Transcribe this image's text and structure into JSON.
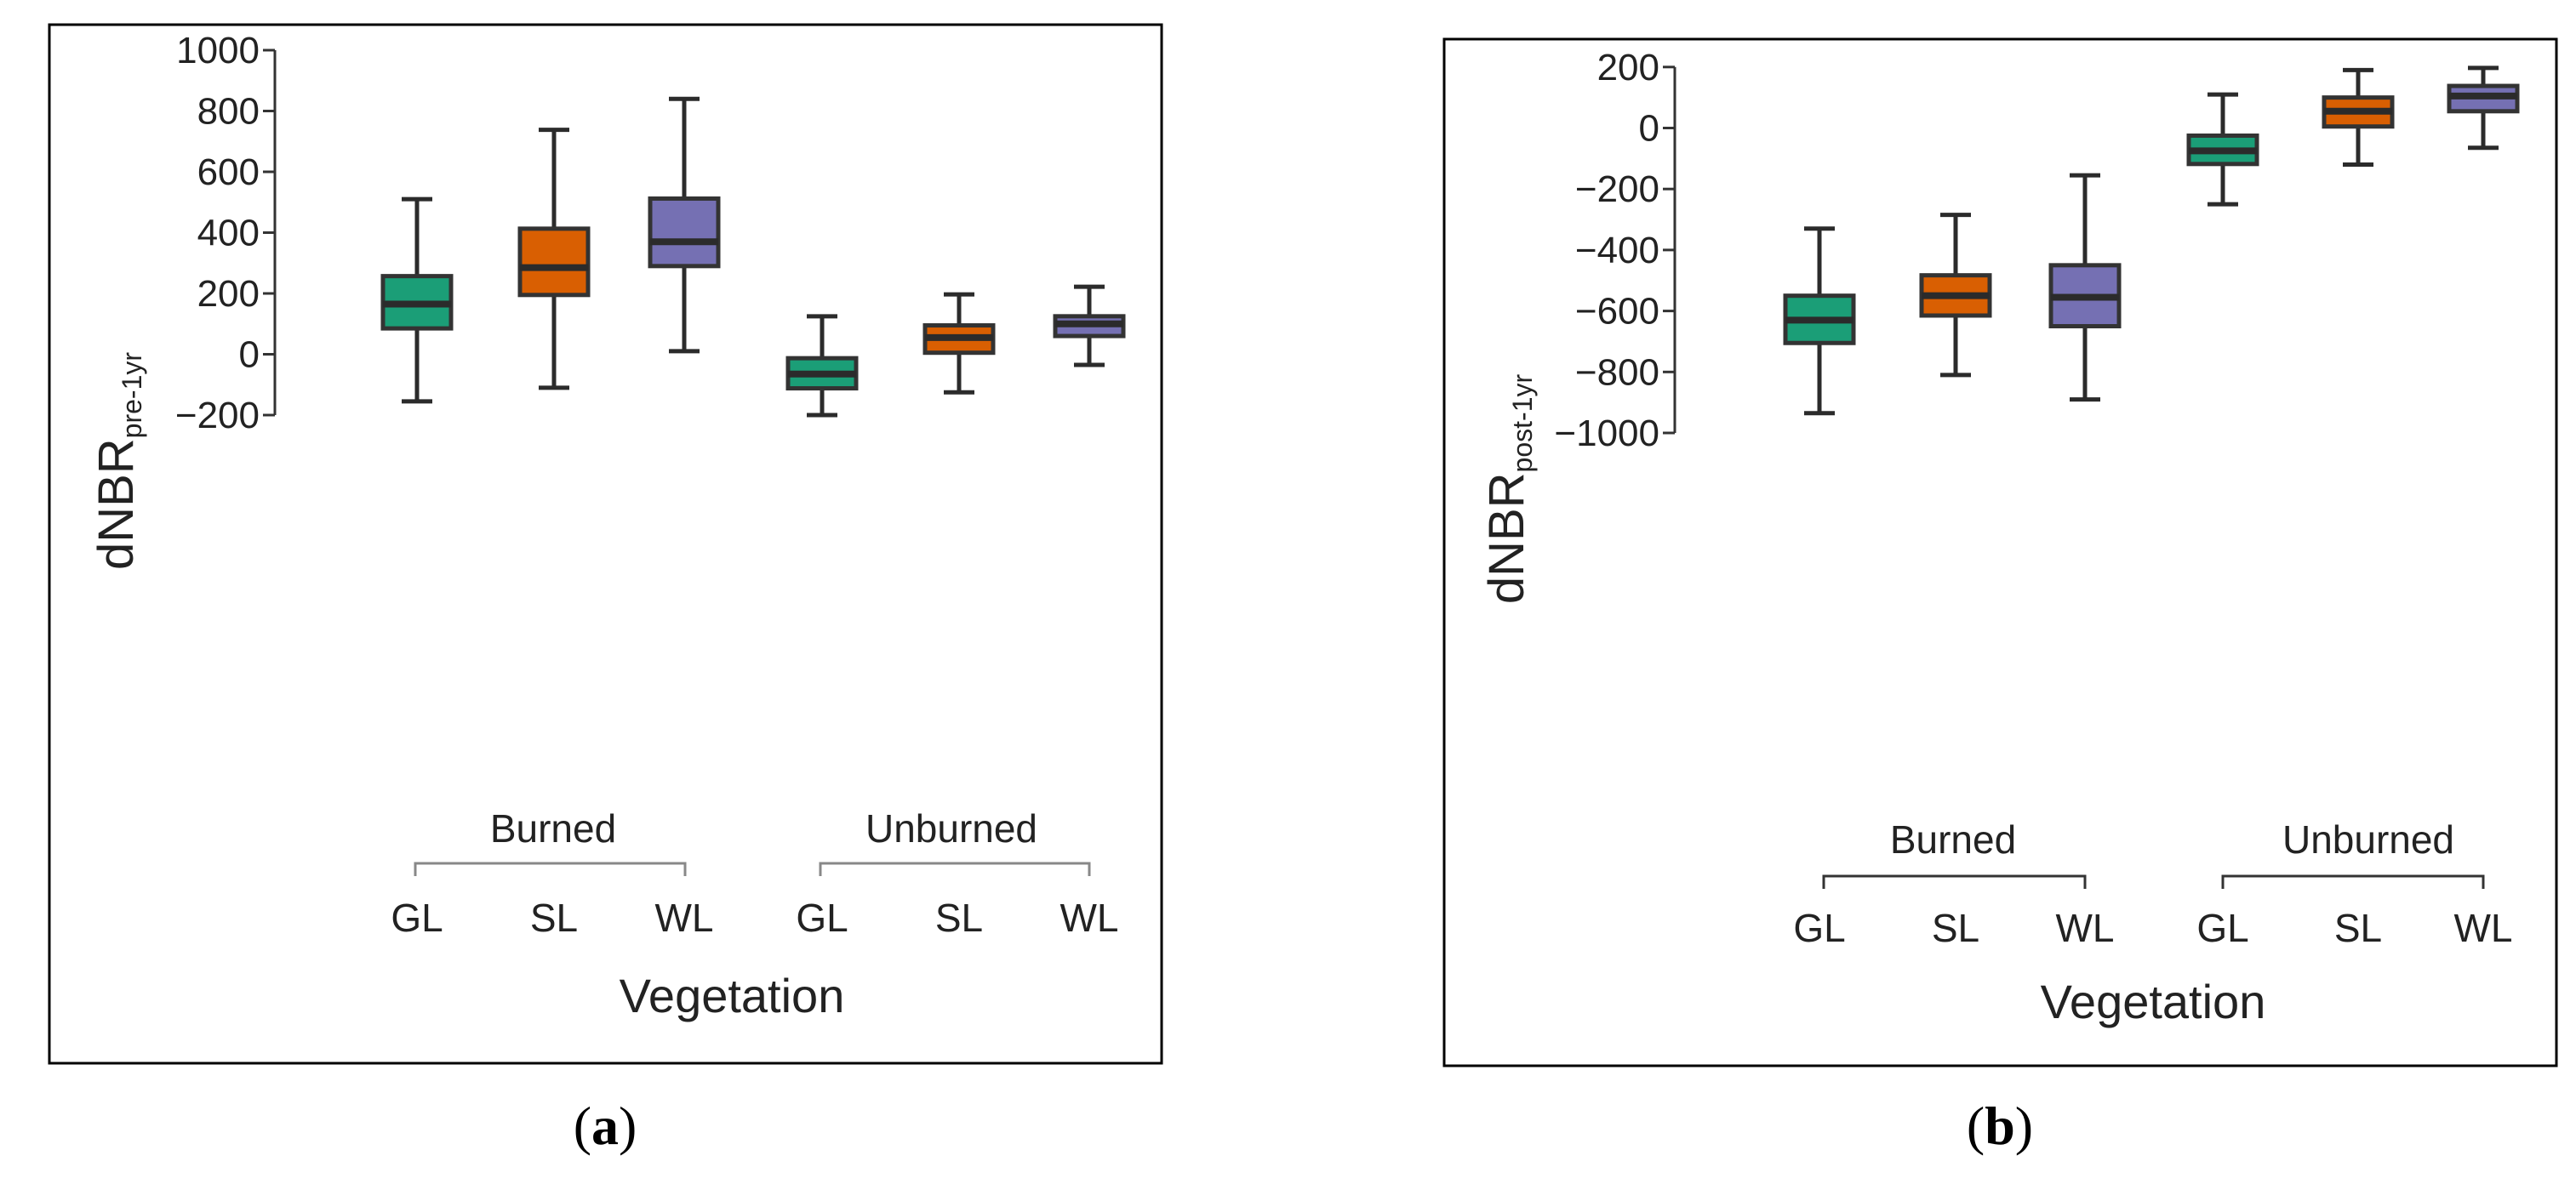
{
  "colors": {
    "GL": "#1b9e77",
    "SL": "#d95f02",
    "WL": "#7570b3",
    "line": "#2b2b2b",
    "frame": "#000000",
    "bracket": "#888888"
  },
  "panels": [
    {
      "label_letter": "a",
      "group_labels": [
        "Burned",
        "Unburned"
      ],
      "categories": [
        "GL",
        "SL",
        "WL",
        "GL",
        "SL",
        "WL"
      ],
      "xlabel": "Vegetation",
      "ylabel_main": "dNBR",
      "ylabel_sub": "pre-1yr"
    },
    {
      "label_letter": "b",
      "group_labels": [
        "Burned",
        "Unburned"
      ],
      "categories": [
        "GL",
        "SL",
        "WL",
        "GL",
        "SL",
        "WL"
      ],
      "xlabel": "Vegetation",
      "ylabel_main": "dNBR",
      "ylabel_sub": "post-1yr"
    }
  ],
  "chart_data": [
    {
      "type": "box",
      "panel": "a",
      "title": "",
      "xlabel": "Vegetation",
      "ylabel": "dNBRpre-1yr",
      "ylim": [
        -200,
        1000
      ],
      "yticks": [
        -200,
        0,
        200,
        400,
        600,
        800,
        1000
      ],
      "groups": [
        "Burned",
        "Unburned"
      ],
      "categories": [
        "GL",
        "SL",
        "WL",
        "GL",
        "SL",
        "WL"
      ],
      "boxes": [
        {
          "group": "Burned",
          "category": "GL",
          "whisker_low": -155,
          "q1": 85,
          "median": 165,
          "q3": 257,
          "whisker_high": 510
        },
        {
          "group": "Burned",
          "category": "SL",
          "whisker_low": -110,
          "q1": 195,
          "median": 285,
          "q3": 413,
          "whisker_high": 738
        },
        {
          "group": "Burned",
          "category": "WL",
          "whisker_low": 10,
          "q1": 290,
          "median": 370,
          "q3": 512,
          "whisker_high": 840
        },
        {
          "group": "Unburned",
          "category": "GL",
          "whisker_low": -200,
          "q1": -112,
          "median": -65,
          "q3": -13,
          "whisker_high": 125
        },
        {
          "group": "Unburned",
          "category": "SL",
          "whisker_low": -125,
          "q1": 5,
          "median": 55,
          "q3": 95,
          "whisker_high": 197
        },
        {
          "group": "Unburned",
          "category": "WL",
          "whisker_low": -35,
          "q1": 60,
          "median": 100,
          "q3": 125,
          "whisker_high": 222
        }
      ]
    },
    {
      "type": "box",
      "panel": "b",
      "title": "",
      "xlabel": "Vegetation",
      "ylabel": "dNBRpost-1yr",
      "ylim": [
        -1000,
        200
      ],
      "yticks": [
        -1000,
        -800,
        -600,
        -400,
        -200,
        0,
        200
      ],
      "groups": [
        "Burned",
        "Unburned"
      ],
      "categories": [
        "GL",
        "SL",
        "WL",
        "GL",
        "SL",
        "WL"
      ],
      "boxes": [
        {
          "group": "Burned",
          "category": "GL",
          "whisker_low": -935,
          "q1": -705,
          "median": -630,
          "q3": -550,
          "whisker_high": -330
        },
        {
          "group": "Burned",
          "category": "SL",
          "whisker_low": -810,
          "q1": -615,
          "median": -550,
          "q3": -483,
          "whisker_high": -285
        },
        {
          "group": "Burned",
          "category": "WL",
          "whisker_low": -890,
          "q1": -650,
          "median": -555,
          "q3": -450,
          "whisker_high": -155
        },
        {
          "group": "Unburned",
          "category": "GL",
          "whisker_low": -250,
          "q1": -118,
          "median": -75,
          "q3": -25,
          "whisker_high": 110
        },
        {
          "group": "Unburned",
          "category": "SL",
          "whisker_low": -120,
          "q1": 5,
          "median": 55,
          "q3": 100,
          "whisker_high": 190
        },
        {
          "group": "Unburned",
          "category": "WL",
          "whisker_low": -65,
          "q1": 55,
          "median": 105,
          "q3": 138,
          "whisker_high": 197
        }
      ]
    }
  ]
}
